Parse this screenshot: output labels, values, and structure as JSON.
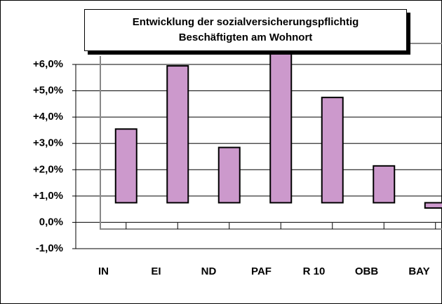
{
  "chart_data": {
    "type": "bar",
    "title": [
      "Entwicklung der sozialversicherungspflichtig",
      "Beschäftigten am Wohnort"
    ],
    "categories": [
      "IN",
      "EI",
      "ND",
      "PAF",
      "R 10",
      "OBB",
      "BAY"
    ],
    "values": [
      2.8,
      5.2,
      2.1,
      5.7,
      4.0,
      1.4,
      -0.2
    ],
    "color": "#cc99cc",
    "ylim": [
      -1,
      6
    ],
    "yticks": [
      {
        "value": -1,
        "label": "-1,0%"
      },
      {
        "value": 0,
        "label": "0,0%"
      },
      {
        "value": 1,
        "label": "+1,0%"
      },
      {
        "value": 2,
        "label": "+2,0%"
      },
      {
        "value": 3,
        "label": "+3,0%"
      },
      {
        "value": 4,
        "label": "+4,0%"
      },
      {
        "value": 5,
        "label": "+5,0%"
      },
      {
        "value": 6,
        "label": "+6,0%"
      }
    ],
    "grid": true
  }
}
